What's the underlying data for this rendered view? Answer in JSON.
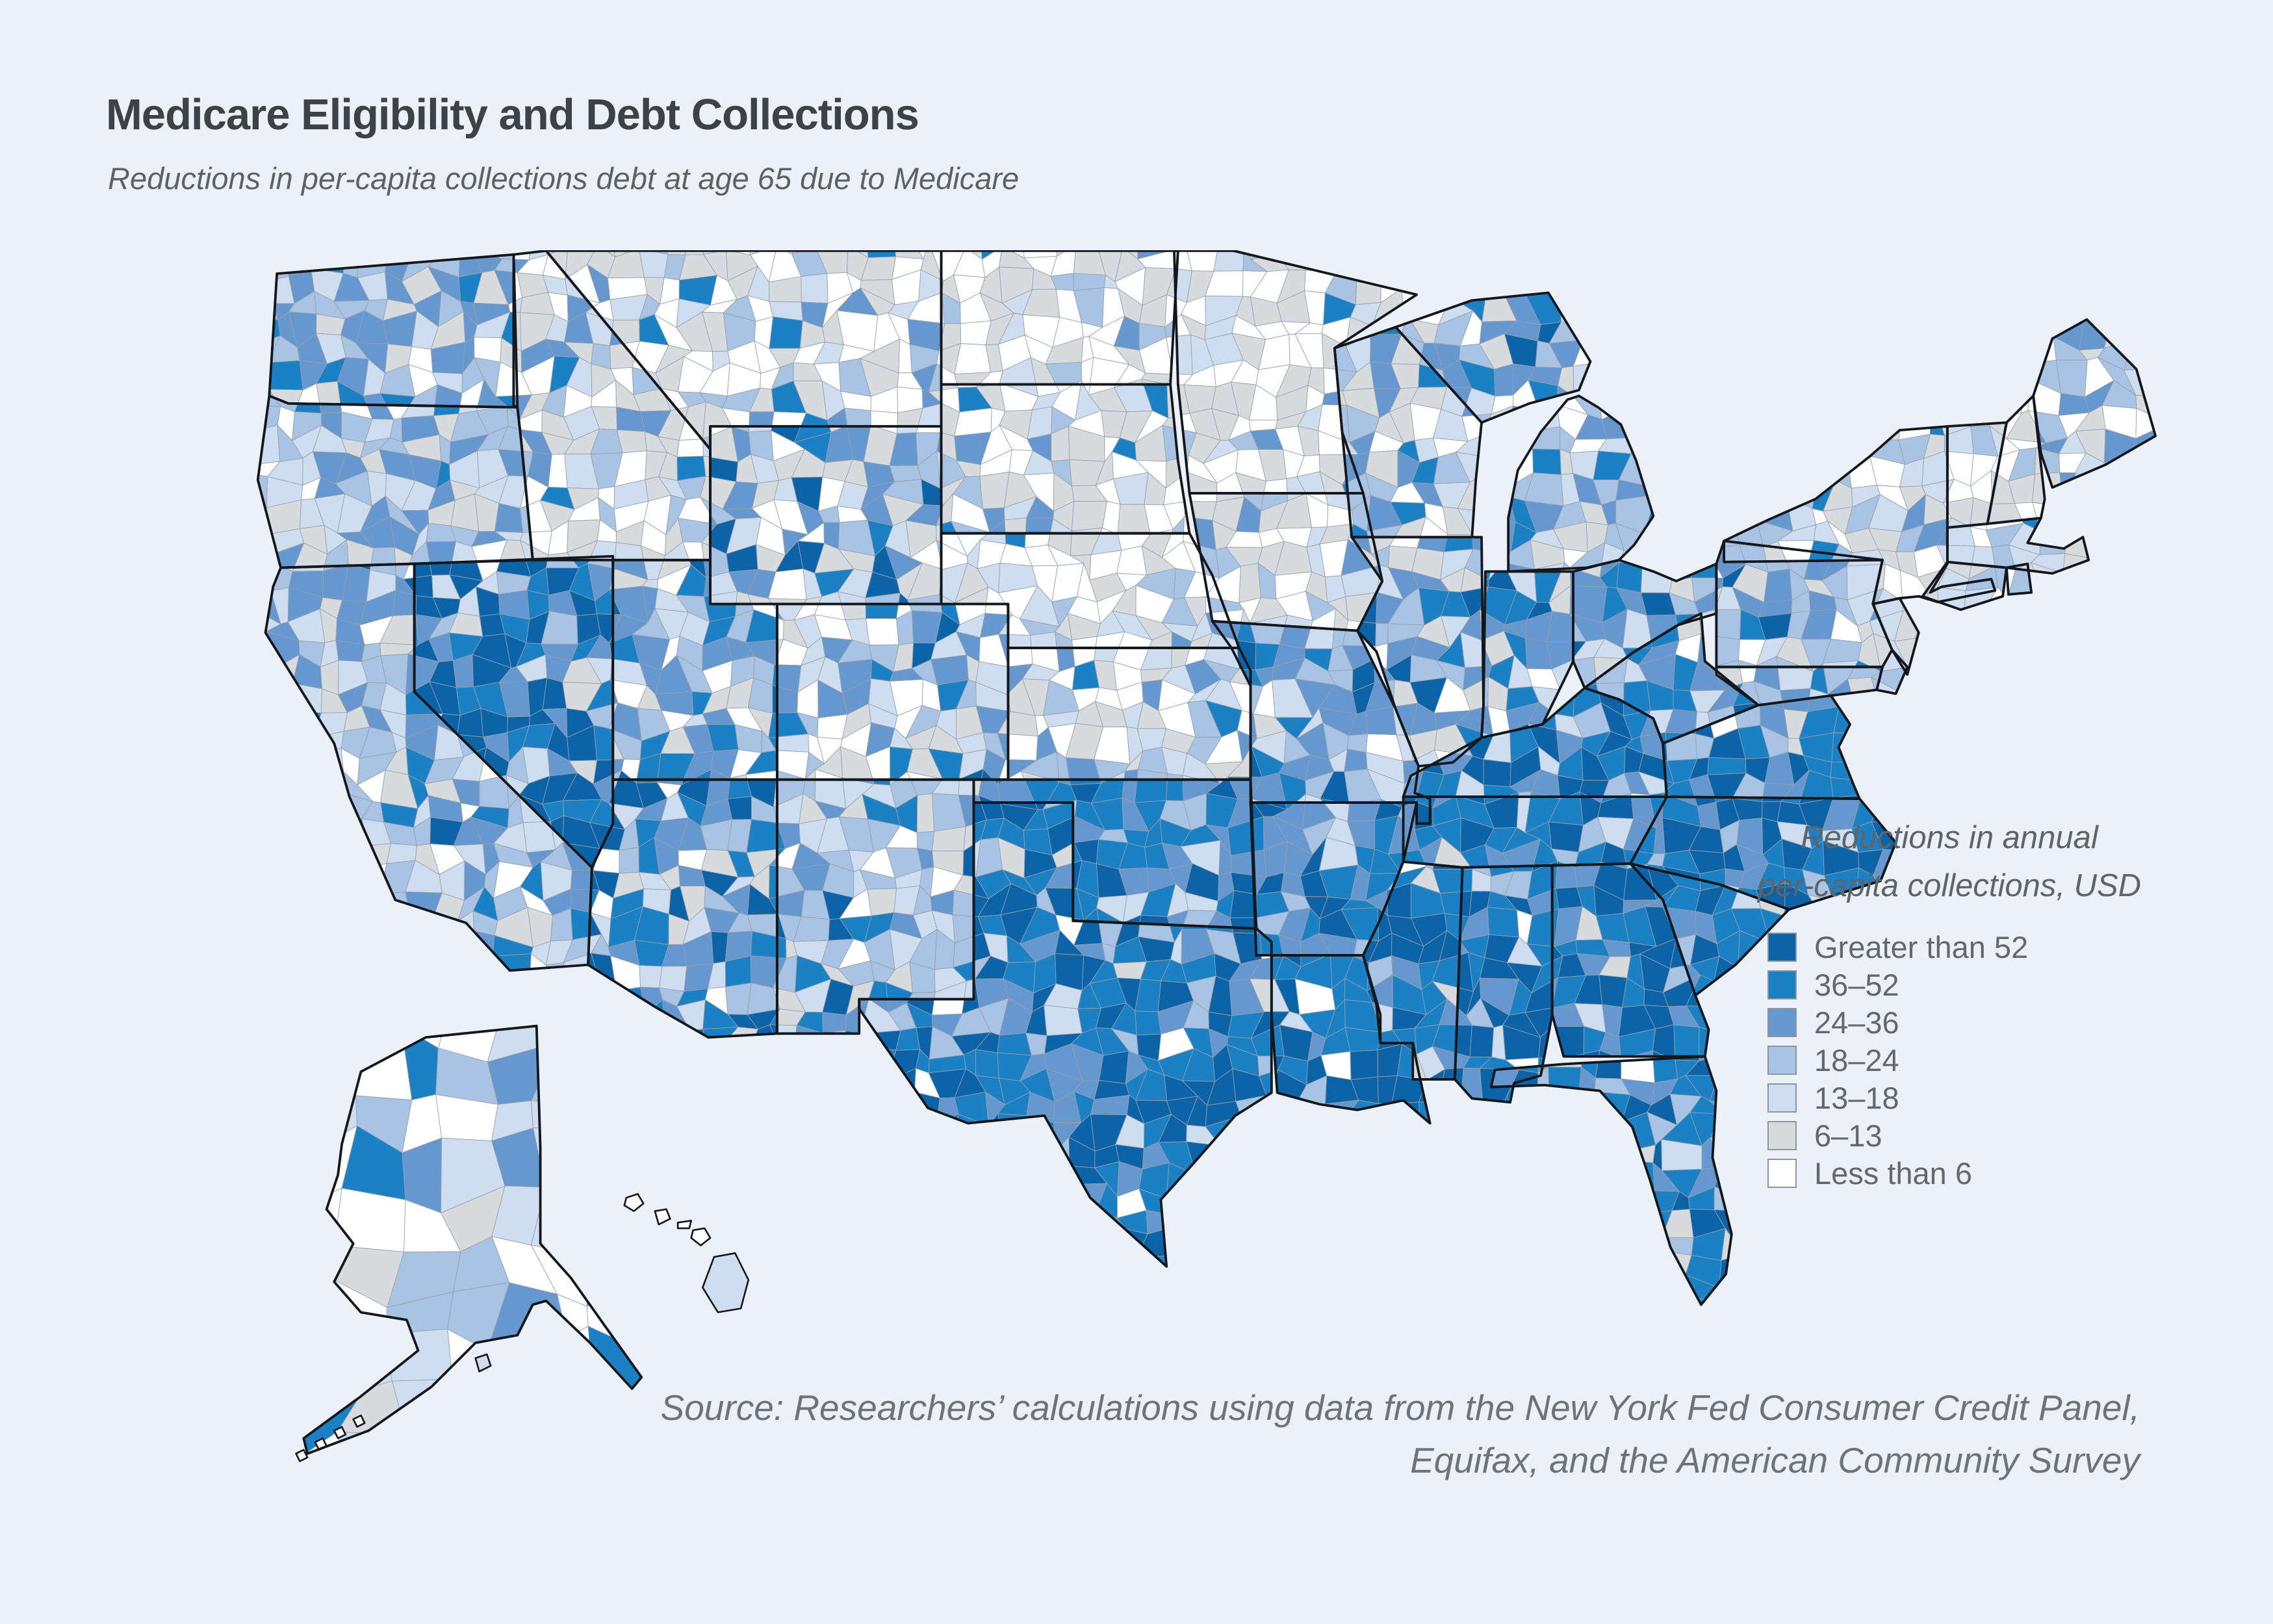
{
  "page": {
    "background": "#ebf1f8"
  },
  "header": {
    "title": "Medicare Eligibility and Debt Collections",
    "subtitle": "Reductions in per-capita collections debt at age 65 due to Medicare"
  },
  "source_note": {
    "line1": "Source: Researchers’ calculations using data from the New York Fed Consumer Credit Panel,",
    "line2": "Equifax, and the American Community Survey"
  },
  "chart_data": {
    "type": "choropleth_map",
    "geography": "United States counties (contiguous states plus Alaska and Hawaii insets)",
    "title": "Medicare Eligibility and Debt Collections",
    "subtitle": "Reductions in per-capita collections debt at age 65 due to Medicare",
    "unit": "USD per capita per year",
    "legend": {
      "title_line1": "Reductions in annual",
      "title_line2": "per-capita collections, USD",
      "position": "right",
      "bins": [
        {
          "label": "Greater than 52",
          "color": "#0d63a7"
        },
        {
          "label": "36–52",
          "color": "#1b80c4"
        },
        {
          "label": "24–36",
          "color": "#6697cf"
        },
        {
          "label": "18–24",
          "color": "#a9c3e4"
        },
        {
          "label": "13–18",
          "color": "#cfddf1"
        },
        {
          "label": "6–13",
          "color": "#d8dbde"
        },
        {
          "label": "Less than 6",
          "color": "#ffffff"
        }
      ]
    },
    "map_colors": {
      "state_border": "#14181c",
      "county_border": "#97a0a9",
      "water": "#ebf1f8"
    },
    "pattern_summary": "Largest reductions (dark blue) concentrated across the South: Texas, Louisiana, Mississippi, Alabama, Georgia, Florida, the Carolinas, Tennessee, Kentucky, Arkansas, Oklahoma, Virginia, plus Nevada and Arizona. Smallest reductions (white/gray) across the northern Plains, upper Midwest and northern New England.",
    "regions": [
      {
        "id": "WA",
        "name": "Washington",
        "mix": [
          0.02,
          0.1,
          0.32,
          0.22,
          0.14,
          0.14,
          0.06
        ]
      },
      {
        "id": "OR",
        "name": "Oregon",
        "mix": [
          0.0,
          0.04,
          0.22,
          0.3,
          0.22,
          0.16,
          0.06
        ]
      },
      {
        "id": "CA",
        "name": "California",
        "mix": [
          0.02,
          0.1,
          0.24,
          0.3,
          0.2,
          0.09,
          0.05
        ]
      },
      {
        "id": "NV",
        "name": "Nevada",
        "mix": [
          0.5,
          0.22,
          0.1,
          0.08,
          0.05,
          0.03,
          0.02
        ]
      },
      {
        "id": "ID",
        "name": "Idaho",
        "mix": [
          0.0,
          0.04,
          0.1,
          0.14,
          0.2,
          0.26,
          0.26
        ]
      },
      {
        "id": "MT",
        "name": "Montana",
        "mix": [
          0.0,
          0.02,
          0.06,
          0.1,
          0.16,
          0.34,
          0.32
        ]
      },
      {
        "id": "WY",
        "name": "Wyoming",
        "mix": [
          0.06,
          0.06,
          0.14,
          0.16,
          0.16,
          0.24,
          0.18
        ]
      },
      {
        "id": "UT",
        "name": "Utah",
        "mix": [
          0.06,
          0.14,
          0.28,
          0.16,
          0.14,
          0.13,
          0.09
        ]
      },
      {
        "id": "CO",
        "name": "Colorado",
        "mix": [
          0.02,
          0.06,
          0.14,
          0.2,
          0.2,
          0.16,
          0.22
        ]
      },
      {
        "id": "AZ",
        "name": "Arizona",
        "mix": [
          0.15,
          0.25,
          0.22,
          0.14,
          0.1,
          0.09,
          0.05
        ]
      },
      {
        "id": "NM",
        "name": "New Mexico",
        "mix": [
          0.04,
          0.1,
          0.18,
          0.26,
          0.22,
          0.12,
          0.08
        ]
      },
      {
        "id": "ND",
        "name": "North Dakota",
        "mix": [
          0.0,
          0.01,
          0.04,
          0.07,
          0.1,
          0.36,
          0.42
        ]
      },
      {
        "id": "SD",
        "name": "South Dakota",
        "mix": [
          0.0,
          0.03,
          0.07,
          0.1,
          0.12,
          0.31,
          0.37
        ]
      },
      {
        "id": "NE",
        "name": "Nebraska",
        "mix": [
          0.0,
          0.02,
          0.05,
          0.09,
          0.14,
          0.28,
          0.42
        ]
      },
      {
        "id": "KS",
        "name": "Kansas",
        "mix": [
          0.02,
          0.05,
          0.1,
          0.15,
          0.2,
          0.23,
          0.25
        ]
      },
      {
        "id": "OK",
        "name": "Oklahoma",
        "mix": [
          0.14,
          0.3,
          0.26,
          0.12,
          0.08,
          0.05,
          0.05
        ]
      },
      {
        "id": "TX",
        "name": "Texas",
        "mix": [
          0.3,
          0.36,
          0.15,
          0.09,
          0.05,
          0.03,
          0.02
        ]
      },
      {
        "id": "MN",
        "name": "Minnesota",
        "mix": [
          0.0,
          0.02,
          0.04,
          0.08,
          0.12,
          0.34,
          0.4
        ]
      },
      {
        "id": "IA",
        "name": "Iowa",
        "mix": [
          0.0,
          0.02,
          0.05,
          0.1,
          0.15,
          0.3,
          0.38
        ]
      },
      {
        "id": "MO",
        "name": "Missouri",
        "mix": [
          0.06,
          0.16,
          0.24,
          0.2,
          0.14,
          0.12,
          0.08
        ]
      },
      {
        "id": "AR",
        "name": "Arkansas",
        "mix": [
          0.22,
          0.36,
          0.24,
          0.09,
          0.05,
          0.02,
          0.02
        ]
      },
      {
        "id": "LA",
        "name": "Louisiana",
        "mix": [
          0.48,
          0.34,
          0.09,
          0.04,
          0.03,
          0.01,
          0.01
        ]
      },
      {
        "id": "WI",
        "name": "Wisconsin",
        "mix": [
          0.01,
          0.06,
          0.12,
          0.15,
          0.18,
          0.25,
          0.23
        ]
      },
      {
        "id": "IL",
        "name": "Illinois",
        "mix": [
          0.05,
          0.1,
          0.16,
          0.2,
          0.15,
          0.19,
          0.15
        ]
      },
      {
        "id": "IN",
        "name": "Indiana",
        "mix": [
          0.08,
          0.16,
          0.26,
          0.2,
          0.13,
          0.1,
          0.07
        ]
      },
      {
        "id": "OH",
        "name": "Ohio",
        "mix": [
          0.08,
          0.15,
          0.25,
          0.2,
          0.12,
          0.12,
          0.08
        ]
      },
      {
        "id": "MI",
        "name": "Michigan (Lower Peninsula)",
        "mix": [
          0.03,
          0.08,
          0.18,
          0.21,
          0.18,
          0.19,
          0.13
        ]
      },
      {
        "id": "MU",
        "name": "Michigan (Upper Peninsula)",
        "mix": [
          0.02,
          0.08,
          0.25,
          0.22,
          0.15,
          0.18,
          0.1
        ]
      },
      {
        "id": "KY",
        "name": "Kentucky",
        "mix": [
          0.22,
          0.3,
          0.24,
          0.11,
          0.06,
          0.04,
          0.03
        ]
      },
      {
        "id": "TN",
        "name": "Tennessee",
        "mix": [
          0.26,
          0.36,
          0.2,
          0.09,
          0.04,
          0.03,
          0.02
        ]
      },
      {
        "id": "MS",
        "name": "Mississippi",
        "mix": [
          0.48,
          0.33,
          0.12,
          0.04,
          0.01,
          0.01,
          0.01
        ]
      },
      {
        "id": "AL",
        "name": "Alabama",
        "mix": [
          0.42,
          0.34,
          0.15,
          0.05,
          0.02,
          0.01,
          0.01
        ]
      },
      {
        "id": "GA",
        "name": "Georgia",
        "mix": [
          0.35,
          0.3,
          0.2,
          0.08,
          0.04,
          0.02,
          0.01
        ]
      },
      {
        "id": "FL",
        "name": "Florida",
        "mix": [
          0.3,
          0.36,
          0.2,
          0.07,
          0.04,
          0.02,
          0.01
        ]
      },
      {
        "id": "SC",
        "name": "South Carolina",
        "mix": [
          0.26,
          0.36,
          0.24,
          0.08,
          0.03,
          0.02,
          0.01
        ]
      },
      {
        "id": "NC",
        "name": "North Carolina",
        "mix": [
          0.26,
          0.36,
          0.24,
          0.08,
          0.03,
          0.02,
          0.01
        ]
      },
      {
        "id": "VA",
        "name": "Virginia",
        "mix": [
          0.22,
          0.3,
          0.24,
          0.12,
          0.06,
          0.04,
          0.02
        ]
      },
      {
        "id": "WV",
        "name": "West Virginia",
        "mix": [
          0.1,
          0.24,
          0.3,
          0.16,
          0.1,
          0.06,
          0.04
        ]
      },
      {
        "id": "MD",
        "name": "Maryland",
        "mix": [
          0.04,
          0.1,
          0.24,
          0.26,
          0.16,
          0.12,
          0.08
        ]
      },
      {
        "id": "DE",
        "name": "Delaware",
        "mix": [
          0.04,
          0.14,
          0.3,
          0.26,
          0.16,
          0.05,
          0.05
        ]
      },
      {
        "id": "NJ",
        "name": "New Jersey",
        "mix": [
          0.0,
          0.02,
          0.08,
          0.18,
          0.32,
          0.22,
          0.18
        ]
      },
      {
        "id": "PA",
        "name": "Pennsylvania",
        "mix": [
          0.03,
          0.1,
          0.22,
          0.24,
          0.18,
          0.14,
          0.09
        ]
      },
      {
        "id": "NY",
        "name": "New York",
        "mix": [
          0.0,
          0.02,
          0.08,
          0.15,
          0.25,
          0.26,
          0.24
        ]
      },
      {
        "id": "CT",
        "name": "Connecticut",
        "mix": [
          0.0,
          0.02,
          0.06,
          0.14,
          0.36,
          0.24,
          0.18
        ]
      },
      {
        "id": "RI",
        "name": "Rhode Island",
        "mix": [
          0.0,
          0.0,
          0.05,
          0.1,
          0.3,
          0.3,
          0.25
        ]
      },
      {
        "id": "MA",
        "name": "Massachusetts",
        "mix": [
          0.0,
          0.02,
          0.05,
          0.12,
          0.3,
          0.28,
          0.23
        ]
      },
      {
        "id": "VT",
        "name": "Vermont",
        "mix": [
          0.0,
          0.0,
          0.02,
          0.08,
          0.2,
          0.3,
          0.4
        ]
      },
      {
        "id": "NH",
        "name": "New Hampshire",
        "mix": [
          0.0,
          0.0,
          0.03,
          0.08,
          0.18,
          0.32,
          0.39
        ]
      },
      {
        "id": "ME",
        "name": "Maine",
        "mix": [
          0.0,
          0.02,
          0.24,
          0.26,
          0.14,
          0.2,
          0.14
        ]
      },
      {
        "id": "AK",
        "name": "Alaska",
        "mix": [
          0.0,
          0.05,
          0.1,
          0.1,
          0.3,
          0.1,
          0.35
        ]
      },
      {
        "id": "HI",
        "name": "Hawaii",
        "mix": [
          0.0,
          0.0,
          0.0,
          0.05,
          0.4,
          0.15,
          0.4
        ]
      }
    ]
  }
}
